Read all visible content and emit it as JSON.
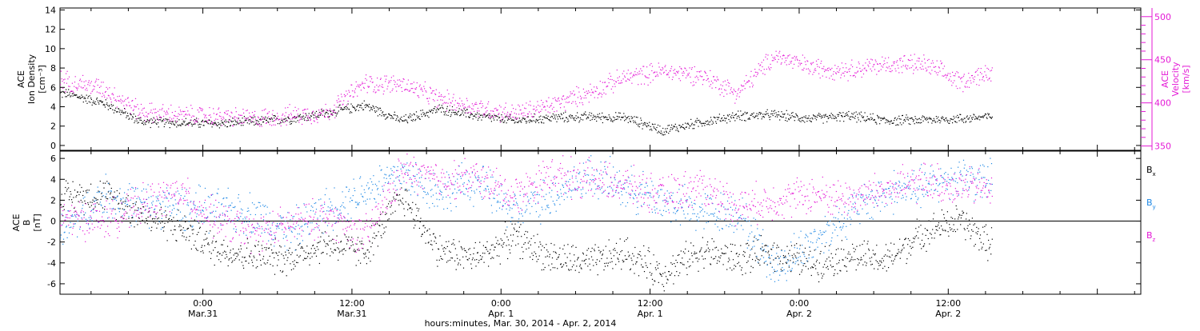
{
  "chart_data": {
    "type": "scatter",
    "time_axis": {
      "label": "hours:minutes, Mar. 30, 2014 - Apr. 2, 2014",
      "tick_labels": [
        {
          "time": "0:00",
          "date": "Mar.31",
          "hours": 0
        },
        {
          "time": "12:00",
          "date": "Mar.31",
          "hours": 12
        },
        {
          "time": "0:00",
          "date": "Apr. 1",
          "hours": 24
        },
        {
          "time": "12:00",
          "date": "Apr. 1",
          "hours": 36
        },
        {
          "time": "0:00",
          "date": "Apr. 2",
          "hours": 48
        },
        {
          "time": "12:00",
          "date": "Apr. 2",
          "hours": 60
        }
      ],
      "xlim_hours": [
        -11.5,
        75.5
      ],
      "data_range_hours": [
        -11.5,
        63.5
      ]
    },
    "panels": [
      {
        "id": "plasma",
        "ylabel_lines": [
          "ACE",
          "Ion Density",
          "[cm⁻³]"
        ],
        "ylim": [
          -0.5,
          14.2
        ],
        "yticks": [
          0,
          2,
          4,
          6,
          8,
          10,
          12,
          14
        ],
        "right_ylabel_lines": [
          "ACE",
          "Velocity",
          "[km/s]"
        ],
        "right_ylim": [
          345,
          510
        ],
        "right_yticks": [
          350,
          400,
          450,
          500
        ],
        "series": [
          {
            "name": "Ion Density",
            "color": "#000000",
            "axis": "left",
            "x": [
              -11,
              -8,
              -5,
              -2,
              1,
              4,
              7,
              10,
              13,
              16,
              19,
              22,
              25,
              28,
              31,
              34,
              37,
              40,
              43,
              46,
              49,
              52,
              55,
              58,
              61,
              63
            ],
            "y": [
              5.4,
              4.4,
              2.5,
              2.4,
              2.3,
              2.5,
              2.8,
              3.4,
              4.2,
              2.6,
              3.8,
              3.1,
              2.6,
              2.9,
              3.0,
              2.9,
              1.6,
              2.4,
              3.1,
              3.2,
              2.8,
              3.1,
              2.6,
              2.7,
              2.8,
              3.0
            ]
          },
          {
            "name": "Velocity",
            "color": "#e41ad6",
            "axis": "right",
            "x": [
              -11,
              -8,
              -5,
              -2,
              1,
              4,
              7,
              10,
              13,
              16,
              19,
              22,
              25,
              28,
              31,
              34,
              37,
              40,
              43,
              46,
              49,
              52,
              55,
              58,
              61,
              63
            ],
            "y": [
              426,
              417,
              390,
              386,
              385,
              382,
              386,
              389,
              423,
              422,
              405,
              395,
              388,
              397,
              412,
              430,
              437,
              433,
              412,
              455,
              441,
              439,
              445,
              445,
              425,
              435
            ]
          }
        ]
      },
      {
        "id": "magnetic",
        "ylabel_lines": [
          "ACE",
          "B",
          "[nT]"
        ],
        "ylim": [
          -7,
          6.7
        ],
        "yticks": [
          -6,
          -4,
          -2,
          0,
          2,
          4,
          6
        ],
        "zero_line": true,
        "series": [
          {
            "name": "Bx",
            "color": "#000000",
            "x": [
              -11,
              -8,
              -5,
              -2,
              1,
              4,
              7,
              10,
              13,
              16,
              19,
              22,
              25,
              28,
              31,
              34,
              37,
              40,
              43,
              46,
              49,
              52,
              55,
              58,
              61,
              63
            ],
            "y": [
              2.4,
              2.6,
              0.8,
              -0.5,
              -2.6,
              -3.3,
              -3.5,
              -2.1,
              -3.0,
              2.5,
              -2.8,
              -3.5,
              -1.5,
              -3.4,
              -4.0,
              -3.0,
              -5.0,
              -2.8,
              -3.6,
              -3.0,
              -4.0,
              -3.2,
              -3.8,
              -1.0,
              0.1,
              -2.0
            ]
          },
          {
            "name": "By",
            "color": "#1e88e5",
            "x": [
              -11,
              -8,
              -5,
              -2,
              1,
              4,
              7,
              10,
              13,
              16,
              19,
              22,
              25,
              28,
              31,
              34,
              37,
              40,
              43,
              46,
              49,
              52,
              55,
              58,
              61,
              63
            ],
            "y": [
              -0.8,
              2.4,
              1.6,
              1.5,
              1.0,
              0.8,
              -1.0,
              1.2,
              3.0,
              4.6,
              2.8,
              3.8,
              1.0,
              2.5,
              4.5,
              3.2,
              2.0,
              0.8,
              1.0,
              -4.5,
              -2.0,
              0.8,
              2.8,
              3.2,
              4.5,
              3.8
            ]
          },
          {
            "name": "Bz",
            "color": "#e41ad6",
            "x": [
              -11,
              -8,
              -5,
              -2,
              1,
              4,
              7,
              10,
              13,
              16,
              19,
              22,
              25,
              28,
              31,
              34,
              37,
              40,
              43,
              46,
              49,
              52,
              55,
              58,
              61,
              63
            ],
            "y": [
              0.4,
              0.1,
              1.5,
              2.8,
              0.2,
              -1.2,
              -0.3,
              0.5,
              -1.5,
              4.8,
              4.0,
              4.2,
              2.5,
              4.5,
              4.0,
              3.5,
              2.4,
              3.4,
              1.5,
              2.0,
              2.6,
              2.2,
              3.0,
              3.8,
              3.4,
              3.2
            ]
          }
        ],
        "legend": [
          {
            "label": "B",
            "sub": "x",
            "color": "#000000"
          },
          {
            "label": "B",
            "sub": "y",
            "color": "#1e88e5"
          },
          {
            "label": "B",
            "sub": "z",
            "color": "#e41ad6"
          }
        ]
      }
    ]
  }
}
